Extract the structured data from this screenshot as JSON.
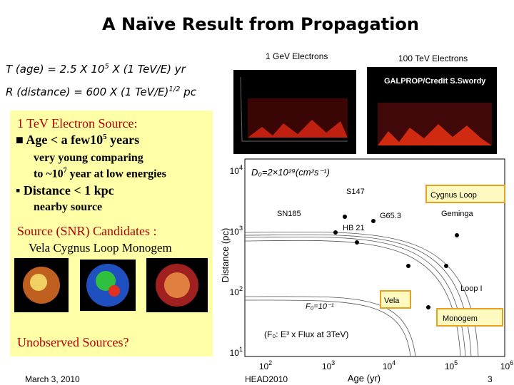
{
  "title": "A Naïve Result from Propagation",
  "formulas": {
    "age": [
      "T (age) = 2.5 X 10",
      "5",
      " X (1 TeV/E) yr"
    ],
    "distance": [
      "R (distance) = 600 X (1 TeV/E)",
      "1/2",
      " pc"
    ]
  },
  "images": {
    "left_label": "1 GeV Electrons",
    "right_label": "100 TeV Electrons",
    "credit": "GALPROP/Credit S.Swordy"
  },
  "box": {
    "heading": "1 TeV  Electron Source:",
    "age": [
      "Age <  a few10",
      "5",
      " years"
    ],
    "young": "very young comparing",
    "low": [
      "to ~10",
      "7",
      " year at low energies"
    ],
    "distance": "Distance < 1 kpc",
    "nearby": "nearby source",
    "candidates": "Source (SNR) Candidates :",
    "names": "Vela    Cygnus Loop  Monogem",
    "unobserved": "Unobserved Sources?"
  },
  "plot": {
    "y_label": "Distance (pc)",
    "x_label": "Age (yr)",
    "y_ticks": [
      {
        "base": "10",
        "exp": "4"
      },
      {
        "base": "10",
        "exp": "3"
      },
      {
        "base": "10",
        "exp": "2"
      },
      {
        "base": "10",
        "exp": "1"
      }
    ],
    "x_ticks": [
      {
        "base": "10",
        "exp": "2"
      },
      {
        "base": "10",
        "exp": "3"
      },
      {
        "base": "10",
        "exp": "4"
      },
      {
        "base": "10",
        "exp": "5"
      },
      {
        "base": "10",
        "exp": "6"
      }
    ],
    "d0": "D₀=2×10²⁹(cm²s⁻¹)",
    "sn185": "SN185",
    "s147": "S147",
    "g653": "G65.3",
    "hb21": "HB 21",
    "geminga": "Geminga",
    "cygnus": "Cygnus Loop",
    "vela": "Vela",
    "monogem": "Monogem",
    "loop1": "Loop I",
    "f0": "F₀=10⁻¹",
    "note": "(F₀: E³ x Flux at 3TeV)"
  },
  "footer": {
    "date": "March 3, 2010",
    "event": "HEAD2010",
    "page": "3"
  }
}
